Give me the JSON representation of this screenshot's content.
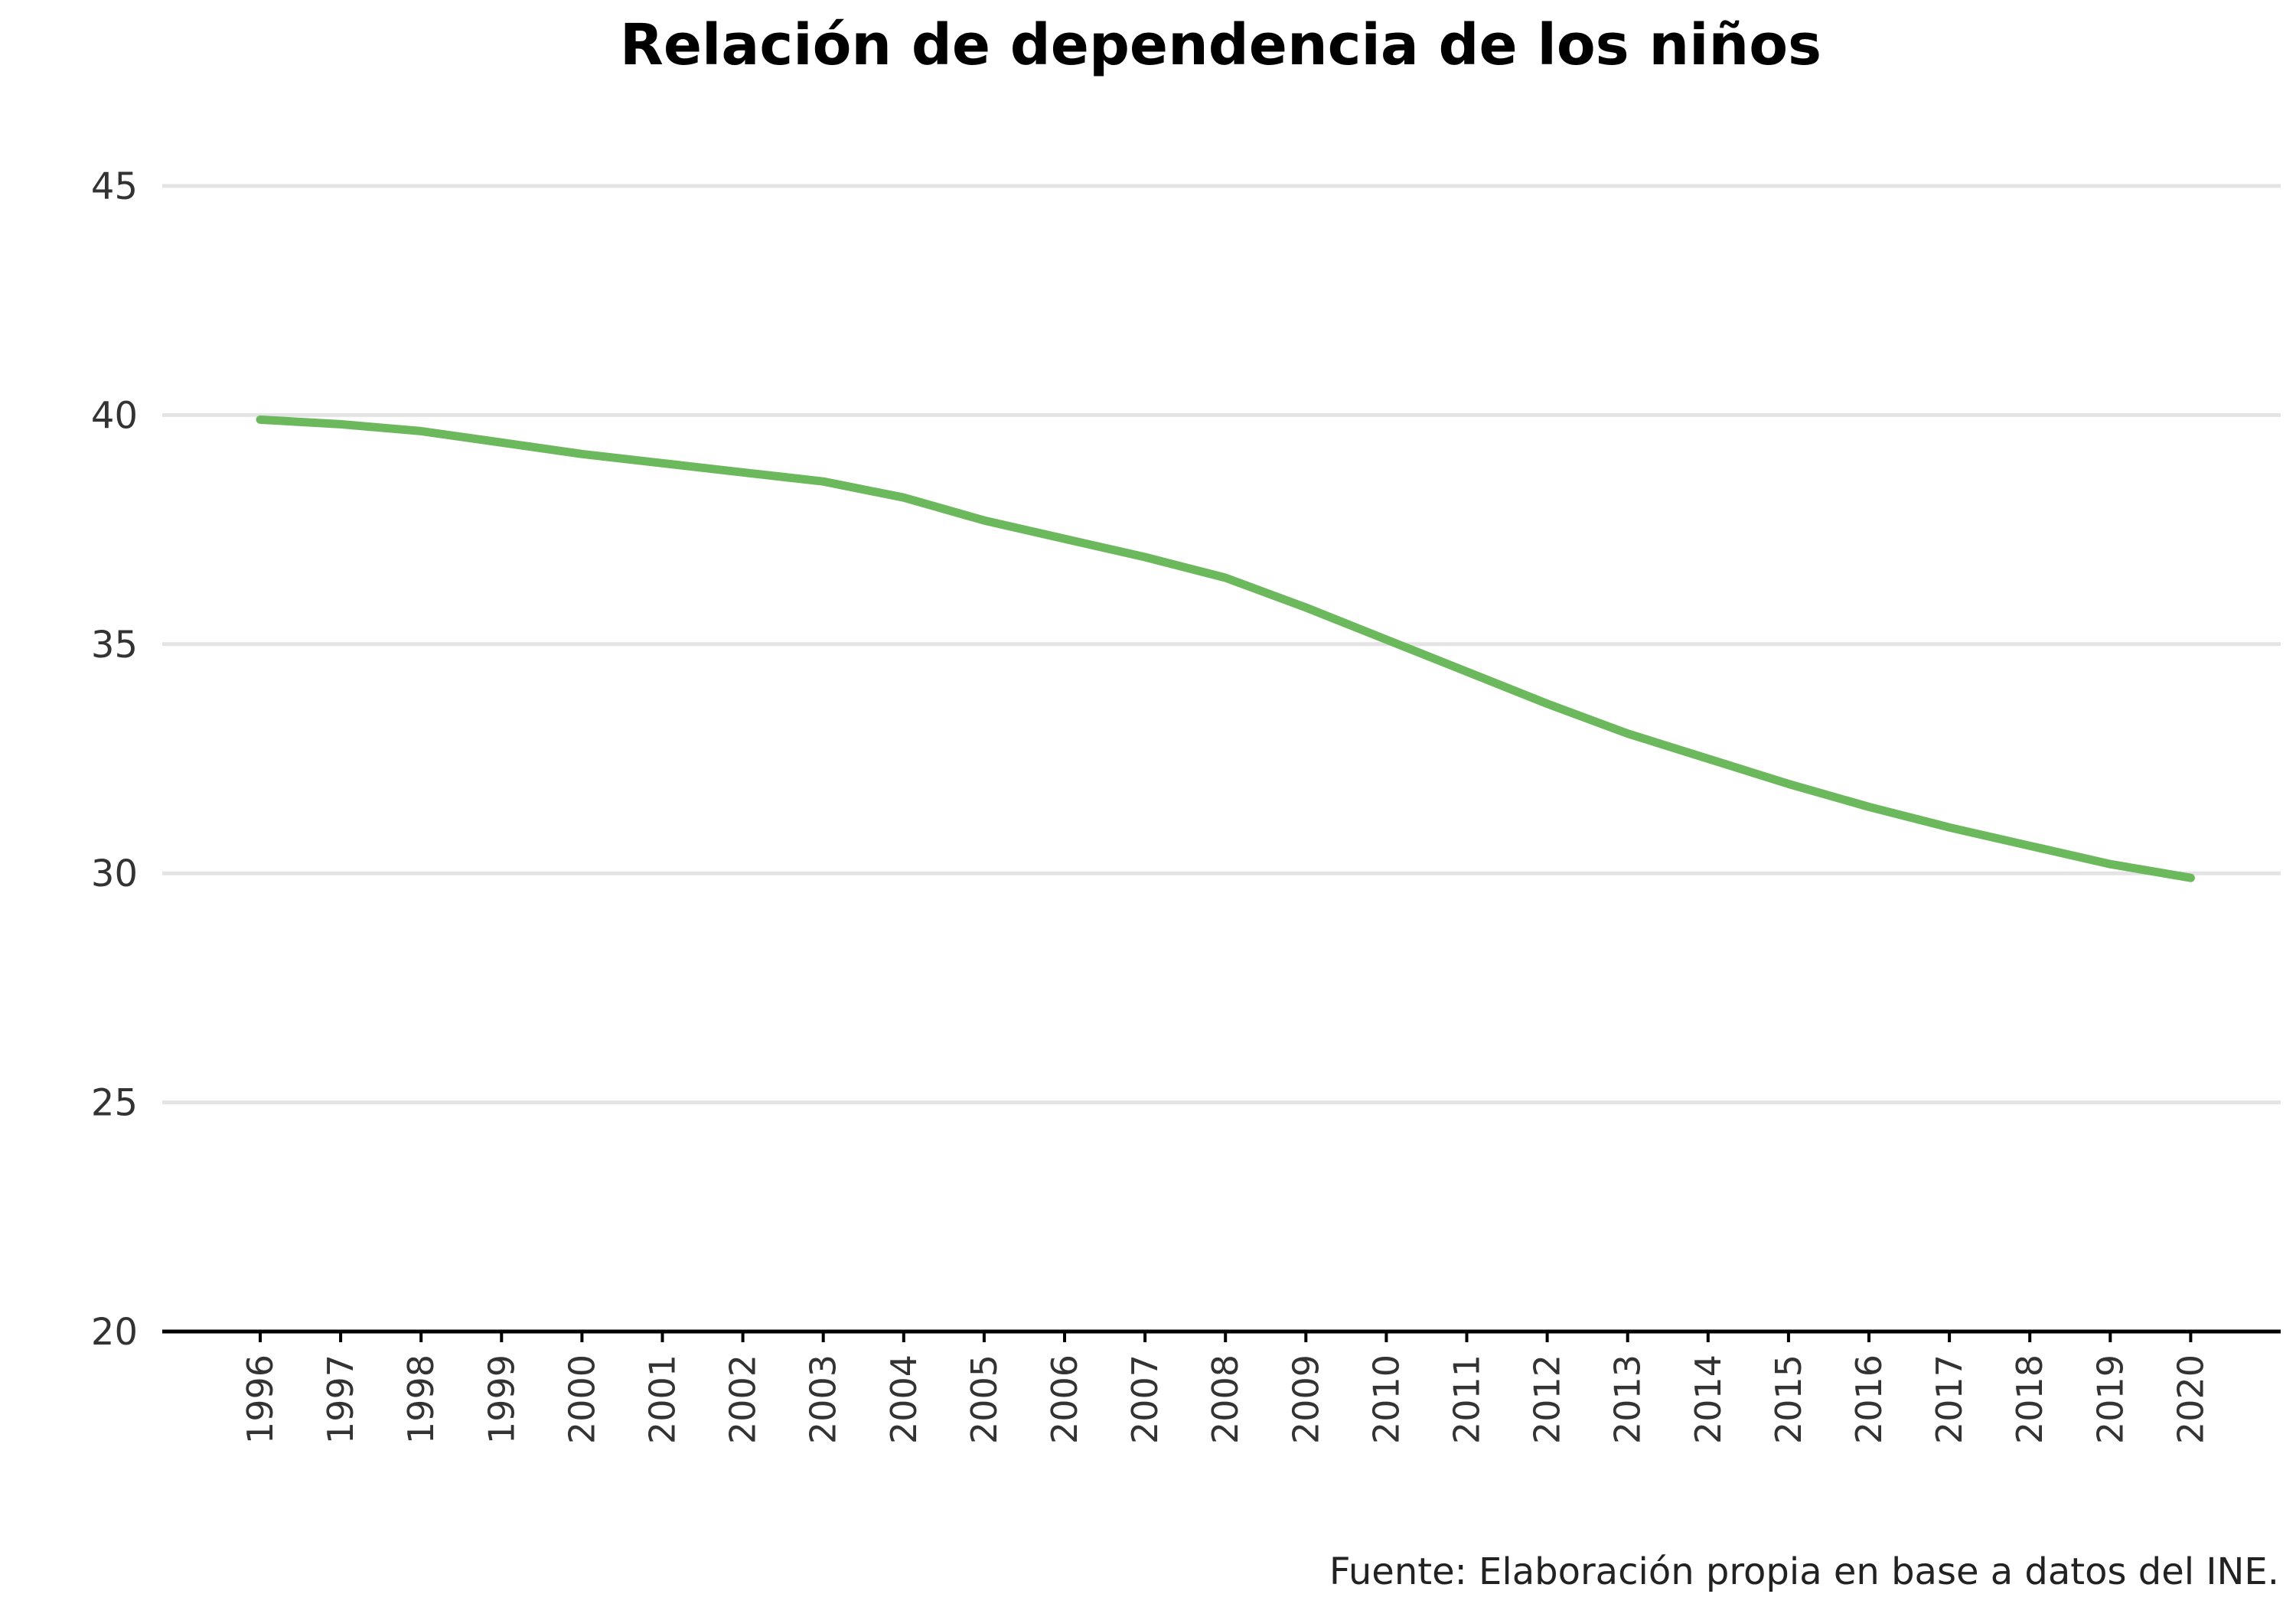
{
  "chart_data": {
    "type": "line",
    "title": "Relación de dependencia de los niños",
    "subtitle": "",
    "xlabel": "",
    "ylabel": "",
    "source": "Fuente: Elaboración propia en base a datos del INE.",
    "x": [
      "1996",
      "1997",
      "1998",
      "1999",
      "2000",
      "2001",
      "2002",
      "2003",
      "2004",
      "2005",
      "2006",
      "2007",
      "2008",
      "2009",
      "2010",
      "2011",
      "2012",
      "2013",
      "2014",
      "2015",
      "2016",
      "2017",
      "2018",
      "2019",
      "2020"
    ],
    "series": [
      {
        "color": "#6cb85c",
        "values": [
          39.9,
          39.8,
          39.65,
          39.4,
          39.15,
          38.95,
          38.75,
          38.55,
          38.2,
          37.7,
          37.3,
          36.9,
          36.45,
          35.8,
          35.1,
          34.4,
          33.7,
          33.05,
          32.5,
          31.95,
          31.45,
          31.0,
          30.6,
          30.2,
          29.9
        ]
      }
    ],
    "ylim": [
      20,
      45
    ],
    "yticks": [
      20,
      25,
      30,
      35,
      40,
      45
    ],
    "grid": true,
    "legend": "none",
    "colors": {
      "gridline": "#e4e4e4",
      "axis": "#000000",
      "text": "#333333"
    }
  }
}
